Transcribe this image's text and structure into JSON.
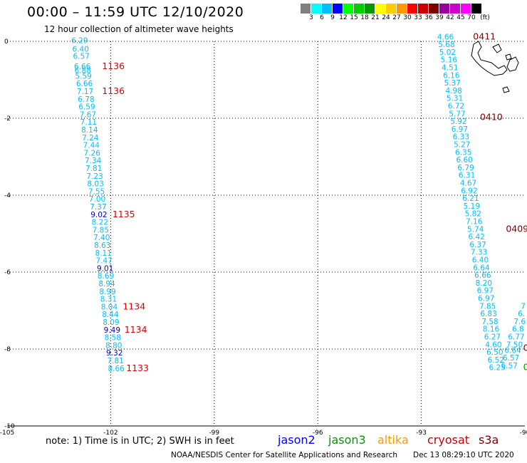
{
  "header": {
    "title": "00:00 – 11:59 UTC 12/10/2020",
    "subtitle": "12 hour collection of altimeter wave heights"
  },
  "legend": {
    "colors": [
      "#808080",
      "#00ffff",
      "#00bfff",
      "#0000ff",
      "#00ff00",
      "#00cc00",
      "#009900",
      "#ffff00",
      "#ffcc00",
      "#ff9900",
      "#ff0000",
      "#cc0000",
      "#800000",
      "#990099",
      "#cc00cc",
      "#ff00ff",
      "#000000"
    ],
    "labels": [
      "3",
      "6",
      "9",
      "12",
      "15",
      "18",
      "21",
      "24",
      "27",
      "30",
      "33",
      "36",
      "39",
      "42",
      "45",
      "70",
      "(ft)"
    ]
  },
  "map": {
    "xlim": [
      -105,
      -90
    ],
    "ylim": [
      -10,
      0
    ],
    "x_ticks": [
      "-105",
      "-102",
      "-99",
      "-96",
      "-93",
      "-90"
    ],
    "y_ticks": [
      "0",
      "-2",
      "-4",
      "-6",
      "-8",
      "-10"
    ],
    "grid": true
  },
  "chart_data": {
    "type": "scatter",
    "units": "ft",
    "tracks": [
      {
        "color": "#00bfff",
        "points": [
          {
            "lon": -102.9,
            "lat": -0.05,
            "value": "6.29"
          },
          {
            "lon": -102.87,
            "lat": -0.27,
            "value": "6.40"
          },
          {
            "lon": -102.85,
            "lat": -0.45,
            "value": "6.57"
          },
          {
            "lon": -102.82,
            "lat": -0.72,
            "value": "6.66"
          },
          {
            "lon": -102.81,
            "lat": -0.82,
            "value": "6.88"
          },
          {
            "lon": -102.79,
            "lat": -0.97,
            "value": "5.59"
          },
          {
            "lon": -102.76,
            "lat": -1.17,
            "value": "6.66"
          },
          {
            "lon": -102.74,
            "lat": -1.37,
            "value": "7.17"
          },
          {
            "lon": -102.71,
            "lat": -1.57,
            "value": "6.78"
          },
          {
            "lon": -102.69,
            "lat": -1.77,
            "value": "6.59"
          },
          {
            "lon": -102.66,
            "lat": -1.97,
            "value": "7.67"
          },
          {
            "lon": -102.64,
            "lat": -2.17,
            "value": "7.11"
          },
          {
            "lon": -102.61,
            "lat": -2.37,
            "value": "8.14"
          },
          {
            "lon": -102.59,
            "lat": -2.57,
            "value": "7.24"
          },
          {
            "lon": -102.56,
            "lat": -2.77,
            "value": "7.44"
          },
          {
            "lon": -102.54,
            "lat": -2.97,
            "value": "7.26"
          },
          {
            "lon": -102.51,
            "lat": -3.17,
            "value": "7.34"
          },
          {
            "lon": -102.49,
            "lat": -3.37,
            "value": "7.81"
          },
          {
            "lon": -102.46,
            "lat": -3.57,
            "value": "7.23"
          },
          {
            "lon": -102.44,
            "lat": -3.77,
            "value": "8.03"
          },
          {
            "lon": -102.41,
            "lat": -3.97,
            "value": "7.55"
          },
          {
            "lon": -102.39,
            "lat": -4.17,
            "value": "7.00"
          },
          {
            "lon": -102.36,
            "lat": -4.37,
            "value": "7.37"
          },
          {
            "lon": -102.34,
            "lat": -4.57,
            "value": "9.02",
            "color": "#0000cc"
          },
          {
            "lon": -102.31,
            "lat": -4.77,
            "value": "8.22"
          },
          {
            "lon": -102.29,
            "lat": -4.97,
            "value": "7.85"
          },
          {
            "lon": -102.26,
            "lat": -5.17,
            "value": "7.40"
          },
          {
            "lon": -102.24,
            "lat": -5.37,
            "value": "8.63"
          },
          {
            "lon": -102.21,
            "lat": -5.57,
            "value": "8.11"
          },
          {
            "lon": -102.19,
            "lat": -5.77,
            "value": "7.47"
          },
          {
            "lon": -102.16,
            "lat": -5.97,
            "value": "9.01",
            "color": "#0000cc"
          },
          {
            "lon": -102.14,
            "lat": -6.17,
            "value": "8.69"
          },
          {
            "lon": -102.11,
            "lat": -6.37,
            "value": "8.94"
          },
          {
            "lon": -102.09,
            "lat": -6.57,
            "value": "8.99"
          },
          {
            "lon": -102.06,
            "lat": -6.77,
            "value": "8.31"
          },
          {
            "lon": -102.04,
            "lat": -6.97,
            "value": "8.04"
          },
          {
            "lon": -102.01,
            "lat": -7.17,
            "value": "8.44"
          },
          {
            "lon": -101.99,
            "lat": -7.37,
            "value": "8.09"
          },
          {
            "lon": -101.96,
            "lat": -7.57,
            "value": "9.49",
            "color": "#0000cc"
          },
          {
            "lon": -101.94,
            "lat": -7.77,
            "value": "8.58"
          },
          {
            "lon": -101.91,
            "lat": -7.97,
            "value": "8.80"
          },
          {
            "lon": -101.89,
            "lat": -8.17,
            "value": "9.32",
            "color": "#0000cc"
          },
          {
            "lon": -101.86,
            "lat": -8.37,
            "value": "7.81"
          },
          {
            "lon": -101.84,
            "lat": -8.57,
            "value": "8.66"
          }
        ],
        "time_labels": [
          {
            "lon": -102.25,
            "lat": -0.72,
            "text": "1136"
          },
          {
            "lon": -102.25,
            "lat": -1.37,
            "text": "1136"
          },
          {
            "lon": -101.95,
            "lat": -4.57,
            "text": "1135"
          },
          {
            "lon": -101.65,
            "lat": -6.97,
            "text": "1134"
          },
          {
            "lon": -101.6,
            "lat": -7.57,
            "text": "1134"
          },
          {
            "lon": -101.55,
            "lat": -8.57,
            "text": "1133"
          }
        ]
      },
      {
        "color": "#00bfff",
        "points": [
          {
            "lon": -92.3,
            "lat": 0.05,
            "value": "4.66"
          },
          {
            "lon": -92.27,
            "lat": -0.15,
            "value": "5.68"
          },
          {
            "lon": -92.24,
            "lat": -0.35,
            "value": "5.02"
          },
          {
            "lon": -92.2,
            "lat": -0.55,
            "value": "5.16"
          },
          {
            "lon": -92.17,
            "lat": -0.75,
            "value": "4.51"
          },
          {
            "lon": -92.13,
            "lat": -0.95,
            "value": "6.16"
          },
          {
            "lon": -92.1,
            "lat": -1.15,
            "value": "5.37"
          },
          {
            "lon": -92.06,
            "lat": -1.35,
            "value": "4.98"
          },
          {
            "lon": -92.03,
            "lat": -1.55,
            "value": "5.31"
          },
          {
            "lon": -91.99,
            "lat": -1.75,
            "value": "6.72"
          },
          {
            "lon": -91.96,
            "lat": -1.95,
            "value": "5.77"
          },
          {
            "lon": -91.92,
            "lat": -2.15,
            "value": "5.92"
          },
          {
            "lon": -91.89,
            "lat": -2.35,
            "value": "6.97"
          },
          {
            "lon": -91.85,
            "lat": -2.55,
            "value": "6.33"
          },
          {
            "lon": -91.82,
            "lat": -2.75,
            "value": "5.27"
          },
          {
            "lon": -91.78,
            "lat": -2.95,
            "value": "6.35"
          },
          {
            "lon": -91.75,
            "lat": -3.15,
            "value": "6.60"
          },
          {
            "lon": -91.71,
            "lat": -3.35,
            "value": "6.79"
          },
          {
            "lon": -91.68,
            "lat": -3.55,
            "value": "6.31"
          },
          {
            "lon": -91.64,
            "lat": -3.75,
            "value": "4.67"
          },
          {
            "lon": -91.61,
            "lat": -3.95,
            "value": "6.92"
          },
          {
            "lon": -91.57,
            "lat": -4.15,
            "value": "6.21"
          },
          {
            "lon": -91.54,
            "lat": -4.35,
            "value": "5.19"
          },
          {
            "lon": -91.5,
            "lat": -4.55,
            "value": "5.82"
          },
          {
            "lon": -91.47,
            "lat": -4.75,
            "value": "7.16"
          },
          {
            "lon": -91.43,
            "lat": -4.95,
            "value": "5.74"
          },
          {
            "lon": -91.4,
            "lat": -5.15,
            "value": "6.42"
          },
          {
            "lon": -91.36,
            "lat": -5.35,
            "value": "6.37"
          },
          {
            "lon": -91.33,
            "lat": -5.55,
            "value": "7.33"
          },
          {
            "lon": -91.29,
            "lat": -5.75,
            "value": "6.40"
          },
          {
            "lon": -91.26,
            "lat": -5.95,
            "value": "6.64"
          },
          {
            "lon": -91.22,
            "lat": -6.15,
            "value": "6.66"
          },
          {
            "lon": -91.19,
            "lat": -6.35,
            "value": "8.20"
          },
          {
            "lon": -91.15,
            "lat": -6.55,
            "value": "6.97"
          },
          {
            "lon": -91.12,
            "lat": -6.75,
            "value": "6.97"
          },
          {
            "lon": -91.08,
            "lat": -6.95,
            "value": "7.85"
          },
          {
            "lon": -91.05,
            "lat": -7.15,
            "value": "6.83"
          },
          {
            "lon": -91.01,
            "lat": -7.35,
            "value": "7.58"
          },
          {
            "lon": -90.98,
            "lat": -7.55,
            "value": "8.16"
          },
          {
            "lon": -90.94,
            "lat": -7.75,
            "value": "6.27"
          },
          {
            "lon": -90.91,
            "lat": -7.95,
            "value": "4.60"
          },
          {
            "lon": -90.87,
            "lat": -8.15,
            "value": "6.50"
          },
          {
            "lon": -90.84,
            "lat": -8.35,
            "value": "6.52"
          },
          {
            "lon": -90.8,
            "lat": -8.55,
            "value": "6.25"
          }
        ],
        "time_labels": [
          {
            "lon": -91.5,
            "lat": 0.05,
            "text": "0411",
            "color": "#800000"
          },
          {
            "lon": -91.3,
            "lat": -2.05,
            "text": "0410",
            "color": "#800000"
          },
          {
            "lon": -90.55,
            "lat": -4.95,
            "text": "0409",
            "color": "#800000"
          }
        ]
      },
      {
        "color": "#00bfff",
        "points": [
          {
            "lon": -90.05,
            "lat": -6.95,
            "value": "7"
          },
          {
            "lon": -90.1,
            "lat": -7.15,
            "value": "6."
          },
          {
            "lon": -90.15,
            "lat": -7.35,
            "value": "7.6"
          },
          {
            "lon": -90.2,
            "lat": -7.55,
            "value": "6.8"
          },
          {
            "lon": -90.25,
            "lat": -7.75,
            "value": "6.77"
          },
          {
            "lon": -90.3,
            "lat": -7.95,
            "value": "7.50"
          },
          {
            "lon": -90.35,
            "lat": -8.1,
            "value": "6.64"
          },
          {
            "lon": -90.4,
            "lat": -8.3,
            "value": "6.57"
          },
          {
            "lon": -90.45,
            "lat": -8.5,
            "value": "6.57"
          }
        ],
        "time_labels": [
          {
            "lon": -90.05,
            "lat": -8.05,
            "text": "0",
            "color": "#800000"
          },
          {
            "lon": -90.05,
            "lat": -8.55,
            "text": "0",
            "color": "#009900"
          }
        ]
      }
    ]
  },
  "footer": {
    "note": "note:  1) Time is in UTC;  2) SWH is in feet",
    "satellites": [
      {
        "name": "jason2",
        "color": "#0000ff"
      },
      {
        "name": "jason3",
        "color": "#009900"
      },
      {
        "name": "altika",
        "color": "#ff9900"
      },
      {
        "name": "cryosat",
        "color": "#cc0000"
      },
      {
        "name": "s3a",
        "color": "#800000"
      }
    ],
    "credit": "NOAA/NESDIS Center for Satellite Applications and Research",
    "timestamp": "Dec 13 08:29:10 UTC 2020"
  }
}
